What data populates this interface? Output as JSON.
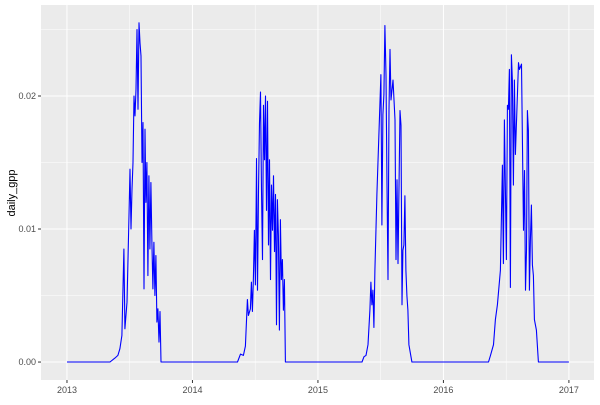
{
  "chart_data": {
    "type": "line",
    "title": "",
    "xlabel": "",
    "ylabel": "daily_gpp",
    "xlim": [
      2012.793,
      2017.2
    ],
    "ylim": [
      -0.00135,
      0.02684
    ],
    "x_ticks": [
      2013,
      2014,
      2015,
      2016,
      2017
    ],
    "x_tick_labels": [
      "2013",
      "2014",
      "2015",
      "2016",
      "2017"
    ],
    "y_ticks": [
      0,
      0.01,
      0.02
    ],
    "y_tick_labels": [
      "0.00",
      "0.01",
      "0.02"
    ],
    "grid": true,
    "background": "#EBEBEB",
    "line_color": "#0000FF",
    "series": [
      {
        "x": [
          2013.0,
          2013.343,
          2013.382,
          2013.406,
          2013.422,
          2013.438,
          2013.454,
          2013.462,
          2013.478,
          2013.494,
          2013.502,
          2013.51,
          2013.518,
          2013.526,
          2013.534,
          2013.542,
          2013.55,
          2013.558,
          2013.566,
          2013.574,
          2013.582,
          2013.59,
          2013.598,
          2013.606,
          2013.614,
          2013.622,
          2013.629,
          2013.637,
          2013.645,
          2013.653,
          2013.661,
          2013.669,
          2013.677,
          2013.685,
          2013.693,
          2013.701,
          2013.709,
          2013.717,
          2013.725,
          2013.733,
          2013.741,
          2013.749,
          2014.359,
          2014.383,
          2014.406,
          2014.422,
          2014.438,
          2014.446,
          2014.462,
          2014.47,
          2014.478,
          2014.486,
          2014.494,
          2014.502,
          2014.51,
          2014.518,
          2014.526,
          2014.534,
          2014.542,
          2014.55,
          2014.558,
          2014.566,
          2014.574,
          2014.582,
          2014.59,
          2014.598,
          2014.606,
          2014.614,
          2014.622,
          2014.63,
          2014.638,
          2014.646,
          2014.654,
          2014.662,
          2014.67,
          2014.677,
          2014.685,
          2014.693,
          2014.701,
          2014.709,
          2014.717,
          2014.725,
          2014.733,
          2014.741,
          2015.351,
          2015.367,
          2015.383,
          2015.399,
          2015.414,
          2015.422,
          2015.43,
          2015.438,
          2015.446,
          2015.454,
          2015.47,
          2015.502,
          2015.51,
          2015.518,
          2015.526,
          2015.534,
          2015.542,
          2015.55,
          2015.558,
          2015.566,
          2015.574,
          2015.582,
          2015.598,
          2015.614,
          2015.622,
          2015.63,
          2015.638,
          2015.654,
          2015.662,
          2015.67,
          2015.677,
          2015.685,
          2015.693,
          2015.701,
          2015.709,
          2015.717,
          2015.725,
          2015.749,
          2016.359,
          2016.375,
          2016.399,
          2016.414,
          2016.43,
          2016.454,
          2016.47,
          2016.478,
          2016.486,
          2016.502,
          2016.51,
          2016.518,
          2016.526,
          2016.534,
          2016.542,
          2016.55,
          2016.558,
          2016.566,
          2016.574,
          2016.598,
          2016.606,
          2016.622,
          2016.638,
          2016.646,
          2016.654,
          2016.662,
          2016.669,
          2016.677,
          2016.685,
          2016.693,
          2016.701,
          2016.709,
          2016.717,
          2016.725,
          2016.741,
          2016.757,
          2017.0
        ],
        "y": [
          0,
          0,
          0.0003,
          0.0005,
          0.001,
          0.002,
          0.0085,
          0.0025,
          0.0045,
          0.011,
          0.0145,
          0.01,
          0.013,
          0.015,
          0.02,
          0.0185,
          0.0205,
          0.025,
          0.019,
          0.0255,
          0.024,
          0.023,
          0.015,
          0.018,
          0.0055,
          0.0175,
          0.012,
          0.015,
          0.0065,
          0.014,
          0.0085,
          0.0135,
          0.009,
          0.0055,
          0.009,
          0.005,
          0.008,
          0.003,
          0.004,
          0.0015,
          0.0038,
          0,
          0,
          0.0006,
          0.0005,
          0.0012,
          0.0047,
          0.0035,
          0.004,
          0.006,
          0.0038,
          0.0063,
          0.0099,
          0.0058,
          0.0153,
          0.0054,
          0.0129,
          0.018,
          0.0203,
          0.0129,
          0.0077,
          0.0193,
          0.0152,
          0.02,
          0.0114,
          0.0196,
          0.0088,
          0.0152,
          0.0062,
          0.0133,
          0.0099,
          0.014,
          0.0083,
          0.0126,
          0.0028,
          0.0122,
          0.0095,
          0.0024,
          0.0107,
          0.0062,
          0.0077,
          0.0039,
          0.0062,
          0,
          0,
          0.0004,
          0.0005,
          0.0013,
          0.0039,
          0.006,
          0.0043,
          0.0054,
          0.0026,
          0.0069,
          0.0126,
          0.0216,
          0.0103,
          0.0186,
          0.0201,
          0.0253,
          0.0216,
          0.0133,
          0.0062,
          0.019,
          0.0235,
          0.0197,
          0.0212,
          0.0182,
          0.0077,
          0.0137,
          0.0074,
          0.0189,
          0.0178,
          0.0043,
          0.0084,
          0.0088,
          0.0125,
          0.0069,
          0.005,
          0.0039,
          0.0013,
          0,
          0,
          0.0005,
          0.0013,
          0.0032,
          0.0043,
          0.0069,
          0.0148,
          0.0074,
          0.0182,
          0.0077,
          0.0193,
          0.019,
          0.022,
          0.0056,
          0.0231,
          0.0211,
          0.0133,
          0.0212,
          0.0156,
          0.0225,
          0.022,
          0.0224,
          0.0099,
          0.0144,
          0.0054,
          0.0084,
          0.0189,
          0.0174,
          0.0054,
          0.0092,
          0.0118,
          0.0073,
          0.0065,
          0.0032,
          0.0024,
          0,
          0
        ]
      }
    ]
  }
}
